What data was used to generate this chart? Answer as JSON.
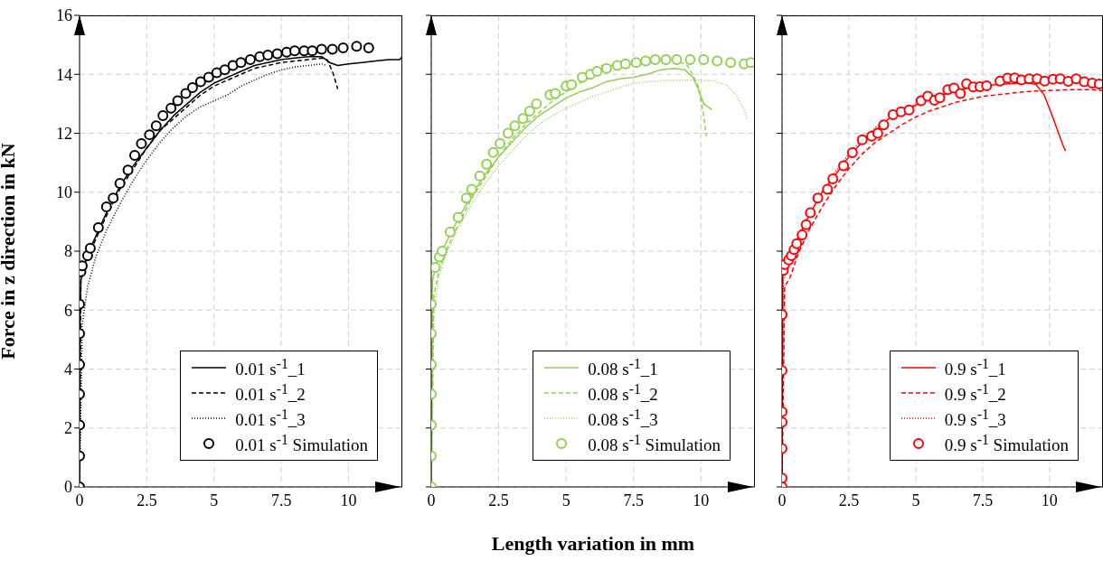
{
  "chart_data": [
    {
      "type": "line",
      "ylabel": "Force in z direction in kN",
      "xlim": [
        0,
        12
      ],
      "xticks": [
        0,
        2.5,
        5,
        7.5,
        10
      ],
      "ylim": [
        0,
        16
      ],
      "yticks": [
        0,
        2,
        4,
        6,
        8,
        10,
        12,
        14,
        16
      ],
      "grid": true,
      "legend": "bottom right",
      "series": [
        {
          "name": "0.01 s$^{-1}$_1",
          "type": "line",
          "line_style": "solid",
          "color": "#000000",
          "x": [
            0,
            0.02,
            0.05,
            0.2,
            0.5,
            1,
            1.5,
            2,
            2.5,
            3,
            3.5,
            4,
            4.5,
            5,
            5.5,
            6,
            6.5,
            7,
            7.5,
            8,
            8.5,
            9,
            9.3,
            9.6,
            10,
            10.5,
            11,
            11.5,
            11.9,
            12
          ],
          "values": [
            0,
            6,
            7.0,
            7.6,
            8.3,
            9.3,
            10.2,
            10.9,
            11.5,
            12.1,
            12.6,
            13.0,
            13.4,
            13.7,
            13.9,
            14.1,
            14.3,
            14.4,
            14.5,
            14.55,
            14.6,
            14.6,
            14.4,
            14.3,
            14.35,
            14.4,
            14.45,
            14.5,
            14.5,
            14.6
          ]
        },
        {
          "name": "0.01 s$^{-1}$_2",
          "type": "line",
          "line_style": "dashed",
          "color": "#000000",
          "x": [
            0,
            0.05,
            0.2,
            0.5,
            1,
            1.5,
            2,
            2.5,
            3,
            3.5,
            4,
            4.5,
            5,
            5.5,
            6,
            6.5,
            7,
            7.5,
            8,
            8.5,
            9,
            9.2,
            9.4,
            9.6
          ],
          "values": [
            0,
            7.0,
            7.6,
            8.2,
            9.2,
            10.1,
            10.8,
            11.5,
            12.1,
            12.5,
            12.9,
            13.3,
            13.6,
            13.8,
            14.0,
            14.2,
            14.3,
            14.4,
            14.45,
            14.5,
            14.55,
            14.5,
            14.1,
            13.5
          ]
        },
        {
          "name": "0.01 s$^{-1}$_3",
          "type": "line",
          "line_style": "dotted",
          "color": "#000000",
          "x": [
            0,
            0.1,
            0.3,
            0.6,
            1,
            1.5,
            2,
            2.5,
            3,
            3.5,
            4,
            4.5,
            5,
            5.5,
            6,
            6.5,
            7,
            7.5,
            8,
            8.5,
            9,
            9.2
          ],
          "values": [
            0,
            5.5,
            6.8,
            7.8,
            8.7,
            9.6,
            10.4,
            11.1,
            11.7,
            12.2,
            12.6,
            12.9,
            13.1,
            13.3,
            13.6,
            13.8,
            14.0,
            14.15,
            14.25,
            14.3,
            14.35,
            14.3
          ]
        },
        {
          "name": "0.01 s$^{-1}$ Simulation",
          "type": "scatter",
          "marker": "circle",
          "color": "#000000",
          "x": [
            0,
            0,
            0,
            0,
            0,
            0,
            0,
            0.05,
            0.1,
            0.3,
            0.4,
            0.7,
            1.0,
            1.25,
            1.5,
            1.8,
            2.05,
            2.3,
            2.6,
            2.85,
            3.1,
            3.4,
            3.65,
            3.95,
            4.2,
            4.5,
            4.8,
            5.1,
            5.4,
            5.7,
            6.0,
            6.35,
            6.7,
            7.0,
            7.35,
            7.7,
            8.0,
            8.35,
            8.65,
            9.0,
            9.4,
            9.8,
            10.3,
            10.75
          ],
          "values": [
            0,
            1.05,
            2.1,
            3.15,
            4.15,
            5.2,
            6.2,
            7.3,
            7.5,
            7.85,
            8.1,
            8.8,
            9.5,
            9.8,
            10.3,
            10.75,
            11.25,
            11.65,
            11.95,
            12.25,
            12.6,
            12.85,
            13.1,
            13.35,
            13.55,
            13.75,
            13.9,
            14.05,
            14.15,
            14.3,
            14.4,
            14.5,
            14.6,
            14.65,
            14.7,
            14.75,
            14.8,
            14.8,
            14.8,
            14.85,
            14.85,
            14.9,
            14.95,
            14.9
          ]
        }
      ]
    },
    {
      "type": "line",
      "xlabel": "Length variation in mm",
      "xlim": [
        0,
        12
      ],
      "xticks": [
        0,
        2.5,
        5,
        7.5,
        10
      ],
      "ylim": [
        0,
        16
      ],
      "yticks": [
        0,
        2,
        4,
        6,
        8,
        10,
        12,
        14,
        16
      ],
      "tick_labels": "x",
      "grid": true,
      "legend": "bottom right",
      "series": [
        {
          "name": "0.08 s$^{-1}$_1",
          "type": "line",
          "line_style": "solid",
          "color": "#92d050",
          "x": [
            0,
            0.05,
            0.2,
            0.5,
            1,
            1.5,
            2,
            2.5,
            3,
            3.5,
            4,
            4.5,
            5,
            5.5,
            6,
            6.5,
            7,
            7.5,
            8,
            8.5,
            9,
            9.4,
            9.7,
            9.9,
            10.1,
            10.4
          ],
          "values": [
            0,
            7.0,
            7.6,
            8.2,
            9.1,
            9.9,
            10.6,
            11.2,
            11.7,
            12.2,
            12.6,
            12.9,
            13.2,
            13.4,
            13.55,
            13.75,
            13.85,
            13.9,
            14.0,
            14.15,
            14.2,
            14.15,
            13.9,
            13.5,
            13.0,
            12.8
          ]
        },
        {
          "name": "0.08 s$^{-1}$_2",
          "type": "line",
          "line_style": "dashed",
          "color": "#92d050",
          "x": [
            0,
            0.1,
            0.3,
            0.6,
            1,
            1.5,
            2,
            2.5,
            3,
            3.5,
            4,
            4.5,
            5,
            5.5,
            6,
            6.3,
            7,
            8,
            9,
            9.5,
            9.9,
            10.1,
            10.2
          ],
          "values": [
            0,
            6.5,
            7.4,
            8.1,
            8.9,
            9.8,
            10.5,
            11.2,
            11.8,
            12.3,
            12.7,
            13.1,
            13.4,
            13.7,
            13.95,
            14.3,
            14.3,
            14.4,
            14.5,
            14.3,
            13.6,
            12.6,
            11.9
          ]
        },
        {
          "name": "0.08 s$^{-1}$_3",
          "type": "line",
          "line_style": "dotted",
          "color": "#92d050",
          "x": [
            0,
            0.1,
            0.3,
            0.6,
            1,
            1.5,
            2,
            2.5,
            3,
            3.5,
            4,
            4.5,
            5,
            5.5,
            6,
            6.5,
            7,
            7.5,
            8,
            8.5,
            9,
            9.5,
            10,
            10.5,
            11,
            11.3,
            11.6,
            11.7
          ],
          "values": [
            0,
            6.0,
            7.2,
            8.0,
            8.8,
            9.6,
            10.3,
            10.9,
            11.4,
            11.9,
            12.3,
            12.6,
            12.85,
            13.05,
            13.25,
            13.4,
            13.55,
            13.7,
            13.75,
            13.78,
            13.8,
            13.8,
            13.8,
            13.78,
            13.6,
            13.3,
            12.8,
            12.5
          ]
        },
        {
          "name": "0.08 s$^{-1}$ Simulation",
          "type": "scatter",
          "marker": "circle",
          "color": "#92d050",
          "x": [
            0,
            0,
            0,
            0,
            0,
            0,
            0,
            0.05,
            0.15,
            0.3,
            0.4,
            0.7,
            1.0,
            1.3,
            1.5,
            1.8,
            2.05,
            2.3,
            2.55,
            2.85,
            3.1,
            3.4,
            3.65,
            3.9,
            4.4,
            4.6,
            5.0,
            5.2,
            5.6,
            5.9,
            6.15,
            6.5,
            6.9,
            7.2,
            7.6,
            7.95,
            8.3,
            8.7,
            9.1,
            9.6,
            10.1,
            10.6,
            11.1,
            11.6,
            11.85
          ],
          "values": [
            0,
            1.05,
            2.1,
            3.15,
            4.15,
            5.2,
            6.2,
            null,
            7.45,
            7.8,
            8.0,
            8.65,
            9.15,
            9.8,
            10.1,
            10.55,
            10.95,
            11.35,
            11.65,
            12.0,
            12.25,
            12.5,
            12.75,
            13.0,
            13.3,
            13.35,
            13.6,
            13.65,
            13.9,
            14.0,
            14.1,
            14.2,
            14.3,
            14.35,
            14.4,
            14.45,
            14.5,
            14.5,
            14.5,
            14.5,
            14.5,
            14.45,
            14.4,
            14.35,
            14.4
          ]
        }
      ]
    },
    {
      "type": "line",
      "xlim": [
        0,
        12
      ],
      "xticks": [
        0,
        2.5,
        5,
        7.5,
        10
      ],
      "ylim": [
        0,
        16
      ],
      "yticks": [
        0,
        2,
        4,
        6,
        8,
        10,
        12,
        14,
        16
      ],
      "tick_labels": "x",
      "grid": true,
      "legend": "bottom right",
      "series": [
        {
          "name": "0.9 s$^{-1}$_1",
          "type": "line",
          "line_style": "solid",
          "color": "#ff0000",
          "x": [
            0,
            0.03,
            0.2,
            0.5,
            1,
            1.5,
            2,
            2.5,
            3,
            3.5,
            4,
            4.5,
            5,
            5.5,
            6,
            6.5,
            7,
            7.5,
            8,
            8.5,
            9,
            9.3,
            9.5,
            9.8,
            10.1,
            10.3,
            10.5,
            10.6
          ],
          "values": [
            0,
            7.2,
            7.7,
            8.3,
            9.2,
            10.0,
            10.6,
            11.2,
            11.7,
            12.1,
            12.5,
            12.75,
            12.95,
            13.15,
            13.3,
            13.45,
            13.55,
            13.6,
            13.65,
            13.68,
            13.7,
            13.7,
            13.65,
            13.3,
            12.6,
            12.1,
            11.6,
            11.4
          ]
        },
        {
          "name": "0.9 s$^{-1}$_2",
          "type": "line",
          "line_style": "dashed",
          "color": "#ff0000",
          "x": [
            0,
            0.1,
            0.3,
            0.6,
            1,
            1.5,
            2,
            2.5,
            3,
            3.5,
            4,
            4.5,
            5,
            5.5,
            6,
            6.5,
            7,
            7.5,
            8,
            8.5,
            9,
            9.5,
            10,
            10.5,
            11,
            11.5,
            12
          ],
          "values": [
            0,
            6.8,
            7.1,
            7.9,
            8.7,
            9.5,
            10.2,
            10.8,
            11.3,
            11.7,
            12.0,
            12.3,
            12.55,
            12.75,
            12.9,
            13.05,
            13.15,
            13.25,
            13.3,
            13.35,
            13.4,
            13.43,
            13.45,
            13.47,
            13.48,
            13.48,
            13.45
          ]
        },
        {
          "name": "0.9 s$^{-1}$_3",
          "type": "line",
          "line_style": "dotted",
          "color": "#ff0000",
          "x": [
            0,
            0.05,
            0.3,
            0.6,
            1,
            1.5,
            2,
            2.5,
            3,
            3.5,
            4,
            4.5,
            5,
            5.5,
            6,
            6.5,
            7
          ],
          "values": [
            0,
            7.0,
            7.7,
            8.4,
            9.2,
            10.0,
            10.7,
            11.3,
            11.8,
            12.2,
            12.5,
            12.8,
            13.0,
            13.2,
            13.35,
            13.45,
            13.55
          ]
        },
        {
          "name": "0.9 s$^{-1}$ Simulation",
          "type": "scatter",
          "marker": "circle",
          "color": "#ff0000",
          "x": [
            0,
            0,
            0,
            0,
            0,
            0,
            0,
            0.05,
            0.1,
            0.25,
            0.35,
            0.45,
            0.55,
            0.75,
            0.9,
            1.06,
            1.34,
            1.7,
            1.9,
            2.3,
            2.63,
            3.0,
            3.35,
            3.58,
            3.8,
            4.15,
            4.45,
            4.75,
            5.2,
            5.45,
            5.7,
            5.9,
            6.2,
            6.43,
            6.67,
            6.9,
            7.15,
            7.4,
            7.65,
            7.93,
            8.15,
            8.43,
            8.7,
            8.95,
            9.24,
            9.54,
            9.82,
            10.13,
            10.4,
            10.7,
            11.0,
            11.3,
            11.6,
            11.86
          ],
          "values": [
            0,
            0.3,
            1.3,
            2.2,
            2.55,
            3.95,
            5.85,
            7.35,
            7.55,
            7.7,
            7.85,
            8.05,
            8.25,
            8.55,
            8.9,
            9.3,
            9.8,
            10.1,
            10.45,
            10.9,
            11.34,
            11.78,
            11.9,
            12.0,
            12.28,
            12.63,
            12.73,
            12.79,
            13.1,
            13.26,
            13.12,
            13.2,
            13.48,
            13.53,
            13.35,
            13.68,
            13.57,
            13.58,
            13.61,
            null,
            13.77,
            13.87,
            13.88,
            13.81,
            13.85,
            13.85,
            13.77,
            13.83,
            13.85,
            13.76,
            13.85,
            13.75,
            13.7,
            13.67
          ]
        }
      ]
    }
  ]
}
